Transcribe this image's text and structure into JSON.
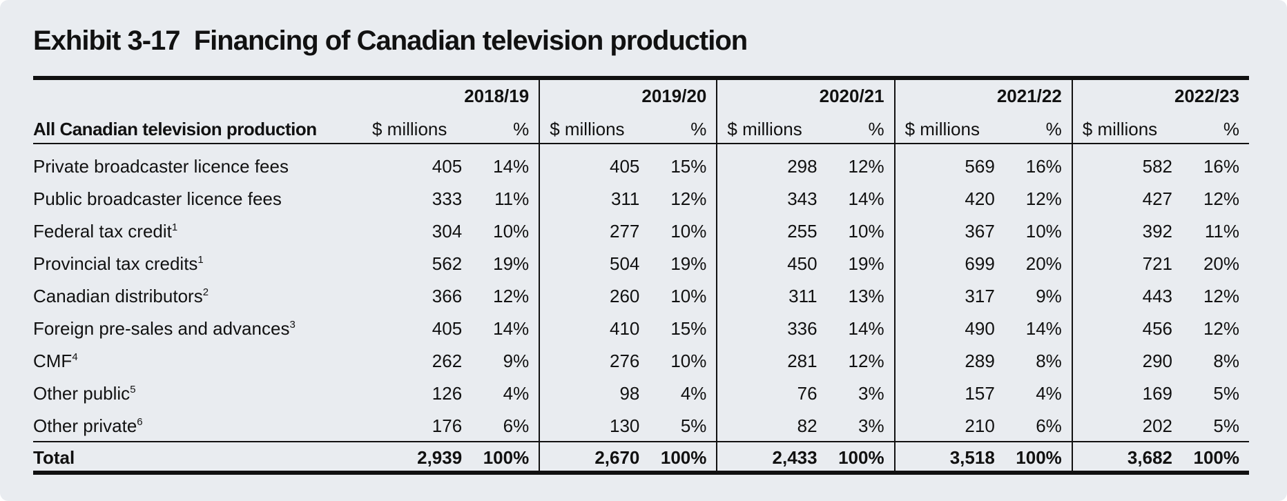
{
  "title": "Exhibit 3-17  Financing of Canadian television production",
  "table": {
    "row_header": "All Canadian television production",
    "years": [
      "2018/19",
      "2019/20",
      "2020/21",
      "2021/22",
      "2022/23"
    ],
    "subheaders": [
      "$ millions",
      "%"
    ],
    "rows": [
      {
        "label": "Private broadcaster licence fees",
        "note": null,
        "cells": [
          "405",
          "14%",
          "405",
          "15%",
          "298",
          "12%",
          "569",
          "16%",
          "582",
          "16%"
        ]
      },
      {
        "label": "Public broadcaster licence fees",
        "note": null,
        "cells": [
          "333",
          "11%",
          "311",
          "12%",
          "343",
          "14%",
          "420",
          "12%",
          "427",
          "12%"
        ]
      },
      {
        "label": "Federal tax credit",
        "note": "1",
        "cells": [
          "304",
          "10%",
          "277",
          "10%",
          "255",
          "10%",
          "367",
          "10%",
          "392",
          "11%"
        ]
      },
      {
        "label": "Provincial tax credits",
        "note": "1",
        "cells": [
          "562",
          "19%",
          "504",
          "19%",
          "450",
          "19%",
          "699",
          "20%",
          "721",
          "20%"
        ]
      },
      {
        "label": "Canadian distributors",
        "note": "2",
        "cells": [
          "366",
          "12%",
          "260",
          "10%",
          "311",
          "13%",
          "317",
          "9%",
          "443",
          "12%"
        ]
      },
      {
        "label": "Foreign pre-sales and advances",
        "note": "3",
        "cells": [
          "405",
          "14%",
          "410",
          "15%",
          "336",
          "14%",
          "490",
          "14%",
          "456",
          "12%"
        ]
      },
      {
        "label": "CMF",
        "note": "4",
        "cells": [
          "262",
          "9%",
          "276",
          "10%",
          "281",
          "12%",
          "289",
          "8%",
          "290",
          "8%"
        ]
      },
      {
        "label": "Other public",
        "note": "5",
        "cells": [
          "126",
          "4%",
          "98",
          "4%",
          "76",
          "3%",
          "157",
          "4%",
          "169",
          "5%"
        ]
      },
      {
        "label": "Other private",
        "note": "6",
        "cells": [
          "176",
          "6%",
          "130",
          "5%",
          "82",
          "3%",
          "210",
          "6%",
          "202",
          "5%"
        ]
      }
    ],
    "total": {
      "label": "Total",
      "cells": [
        "2,939",
        "100%",
        "2,670",
        "100%",
        "2,433",
        "100%",
        "3,518",
        "100%",
        "3,682",
        "100%"
      ]
    }
  }
}
